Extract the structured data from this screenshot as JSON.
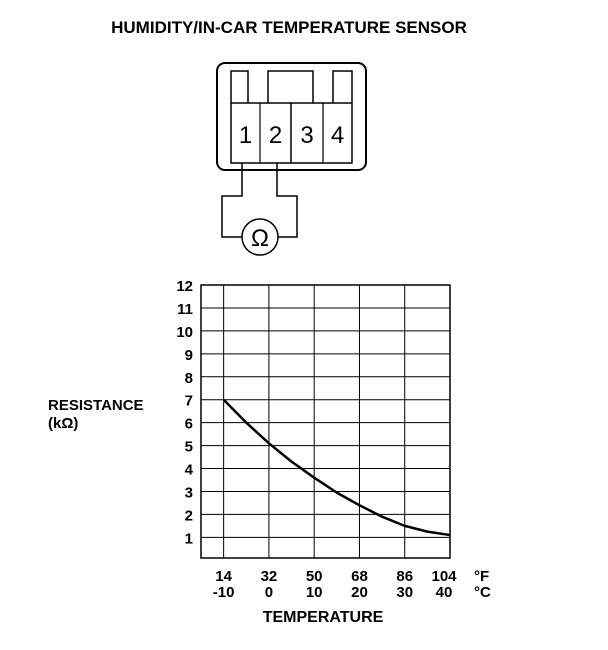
{
  "title": "HUMIDITY/IN-CAR TEMPERATURE SENSOR",
  "connector": {
    "pins": [
      "1",
      "2",
      "3",
      "4"
    ],
    "meter_symbol": "Ω",
    "meter_icon": "ohmmeter-icon"
  },
  "chart_data": {
    "type": "line",
    "title": "",
    "xlabel": "TEMPERATURE",
    "ylabel": "RESISTANCE",
    "ylabel_unit": "(kΩ)",
    "x_unit_f": "°F",
    "x_unit_c": "°C",
    "xticks_f": [
      "14",
      "32",
      "50",
      "68",
      "86",
      "104"
    ],
    "xticks_c": [
      "-10",
      "0",
      "10",
      "20",
      "30",
      "40"
    ],
    "xtick_values_c": [
      -10,
      0,
      10,
      20,
      30,
      40
    ],
    "yticks": [
      "1",
      "2",
      "3",
      "4",
      "5",
      "6",
      "7",
      "8",
      "9",
      "10",
      "11",
      "12"
    ],
    "xlim": [
      -15,
      40
    ],
    "ylim": [
      0.1,
      12
    ],
    "grid": true,
    "series": [
      {
        "x": [
          -10,
          -5,
          0,
          5,
          10,
          15,
          20,
          25,
          30,
          35,
          40
        ],
        "y": [
          7.0,
          6.0,
          5.1,
          4.3,
          3.6,
          2.95,
          2.4,
          1.9,
          1.5,
          1.25,
          1.1
        ]
      }
    ],
    "color": "#000000"
  }
}
